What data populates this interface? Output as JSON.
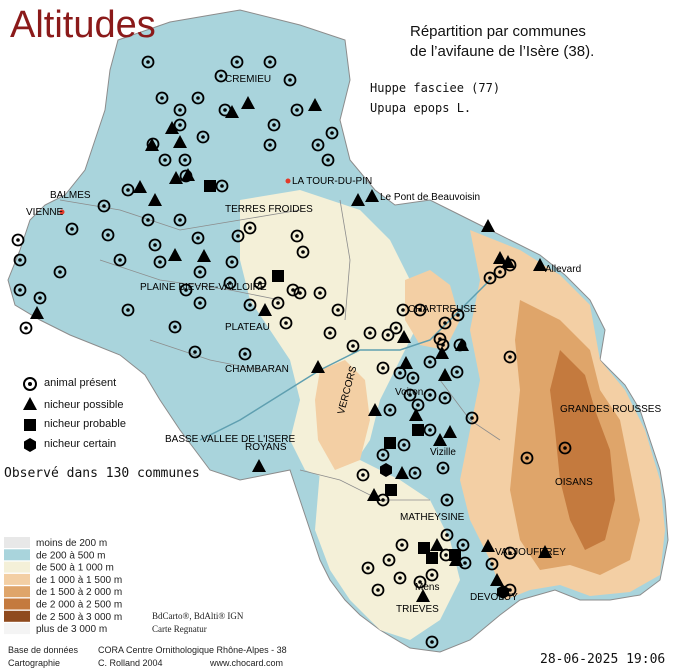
{
  "title": "Altitudes",
  "subtitle_line1": "Répartition par communes",
  "subtitle_line2": "de l’avifaune de l’Isère (38).",
  "species": {
    "common": "Huppe fasciee  (77)",
    "latin": "Upupa epops L."
  },
  "symbol_legend": {
    "present": "animal présent",
    "possible": "nicheur possible",
    "probable": "nicheur probable",
    "certain": "nicheur certain"
  },
  "observed_text": "Observé dans 130 communes",
  "altitude_legend": [
    {
      "label": "moins de 200 m",
      "color": "#e8e8e8"
    },
    {
      "label": "de 200 à 500 m",
      "color": "#a9d4dc"
    },
    {
      "label": "de 500 à 1 000 m",
      "color": "#f4f0d8"
    },
    {
      "label": "de 1 000 à 1 500 m",
      "color": "#f3cfa4"
    },
    {
      "label": "de 1 500 à 2 000 m",
      "color": "#dfa56a"
    },
    {
      "label": "de 2 000 à 2 500 m",
      "color": "#c47a3e"
    },
    {
      "label": "de 2 500 à 3 000 m",
      "color": "#8f4a1e"
    },
    {
      "label": "plus de 3 000 m",
      "color": "#f4f4f4"
    }
  ],
  "map_credit_1": "BdCarto®, BdAlti® IGN",
  "map_credit_2": "Carte Regnatur",
  "credits": {
    "base_label": "Base de données",
    "base_value": "CORA Centre Ornithologique Rhône-Alpes - 38",
    "carto_label": "Cartographie",
    "carto_value": "C. Rolland 2004",
    "site": "www.chocard.com"
  },
  "date": "28-06-2025 19:06",
  "places": {
    "vienne": "VIENNE",
    "balmes": "BALMES",
    "latourdupin": "LA TOUR-DU-PIN",
    "pontbeauvoisin": "Le Pont de Beauvoisin",
    "terres_froides": "TERRES FROIDES",
    "plateau": "PLATEAU",
    "chambaran": "CHAMBARAN",
    "vercors": "VERCORS",
    "chartreuse": "CHARTREUSE",
    "grandes_rousses": "GRANDES ROUSSES",
    "oisans": "OISANS",
    "matheysine": "MATHEYSINE",
    "trieves": "TRIEVES",
    "devoluy": "DEVOLUY",
    "valjouffrey": "VALJOUFFREY",
    "royans": "ROYANS",
    "bievre": "PLAINE BIEVRE-VALLOIRE",
    "basse_valee": "BASSE VALLEE DE L'ISERE",
    "crans": "CREMIEU",
    "voiron": "Voiron",
    "vizille": "Vizille",
    "allevard": "Allevard",
    "mens": "Mens"
  },
  "colors": {
    "title": "#8b1a1a",
    "low": "#a9d4dc",
    "mid": "#f4f0d8",
    "high": "#dfa56a",
    "road": "#e23a2a"
  }
}
